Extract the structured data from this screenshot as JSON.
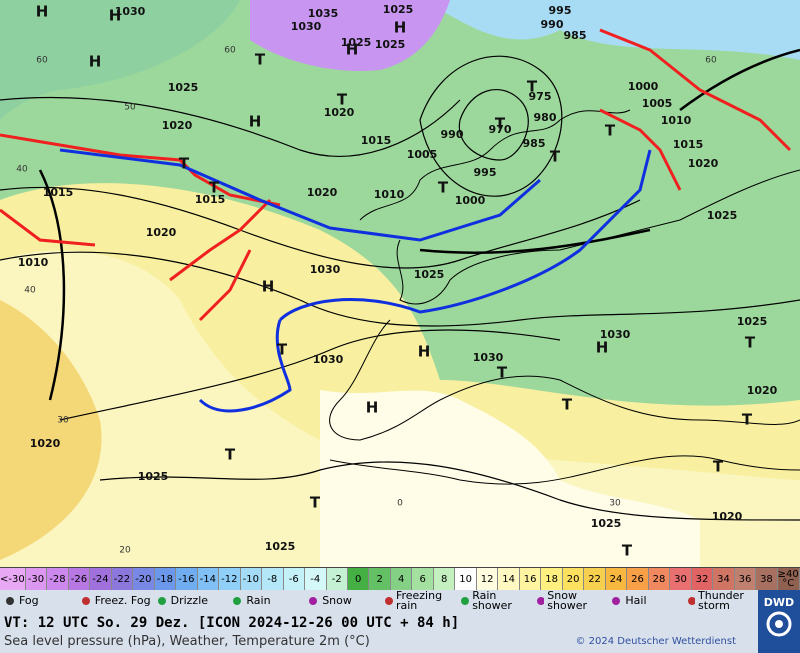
{
  "map": {
    "pressure_labels": [
      "1030",
      "1035",
      "1025",
      "1030",
      "1025",
      "1025",
      "1025",
      "1020",
      "1020",
      "1015",
      "1005",
      "990",
      "970",
      "975",
      "980",
      "985",
      "995",
      "1000",
      "1010",
      "1020",
      "1015",
      "1015",
      "1020",
      "1010",
      "1030",
      "1025",
      "1030",
      "1030",
      "1030",
      "1025",
      "1020",
      "1020",
      "1025",
      "1025",
      "1020",
      "1025",
      "995",
      "990",
      "985",
      "1000",
      "1005",
      "1010",
      "1015",
      "1020",
      "1025"
    ],
    "centers": [
      "H",
      "H",
      "H",
      "H",
      "H",
      "H",
      "H",
      "H",
      "H",
      "H",
      "T",
      "T",
      "T",
      "T",
      "T",
      "T",
      "T",
      "T",
      "T",
      "T",
      "T",
      "T",
      "T",
      "T",
      "T",
      "T",
      "T",
      "T"
    ],
    "grid_labels": [
      "60",
      "50",
      "40",
      "40",
      "30",
      "20",
      "60",
      "60",
      "0",
      "30"
    ]
  },
  "temperature_scale": [
    {
      "label": "<-30",
      "color": "#e8a8f4"
    },
    {
      "label": -30,
      "color": "#dc98f0"
    },
    {
      "label": -28,
      "color": "#cc88ec"
    },
    {
      "label": -26,
      "color": "#b878e4"
    },
    {
      "label": -24,
      "color": "#a070dc"
    },
    {
      "label": -22,
      "color": "#8c78dc"
    },
    {
      "label": -20,
      "color": "#7888e4"
    },
    {
      "label": -18,
      "color": "#6c98ec"
    },
    {
      "label": -16,
      "color": "#70acf0"
    },
    {
      "label": -14,
      "color": "#80c0f4"
    },
    {
      "label": -12,
      "color": "#90d0f8"
    },
    {
      "label": -10,
      "color": "#a4dcf8"
    },
    {
      "label": -8,
      "color": "#b4e8f8"
    },
    {
      "label": -6,
      "color": "#c4f0f8"
    },
    {
      "label": -4,
      "color": "#d4f8f8"
    },
    {
      "label": -2,
      "color": "#c4f0d4"
    },
    {
      "label": 0,
      "color": "#44b044"
    },
    {
      "label": 2,
      "color": "#64c064"
    },
    {
      "label": 4,
      "color": "#84d084"
    },
    {
      "label": 6,
      "color": "#a4e0a0"
    },
    {
      "label": 8,
      "color": "#c4f0c0"
    },
    {
      "label": 10,
      "color": "#ffffff"
    },
    {
      "label": 12,
      "color": "#fffce0"
    },
    {
      "label": 14,
      "color": "#fff8c0"
    },
    {
      "label": 16,
      "color": "#fff4a0"
    },
    {
      "label": 18,
      "color": "#fff080"
    },
    {
      "label": 20,
      "color": "#fce060"
    },
    {
      "label": 22,
      "color": "#f8d050"
    },
    {
      "label": 24,
      "color": "#f8b840"
    },
    {
      "label": 26,
      "color": "#f8a048"
    },
    {
      "label": 28,
      "color": "#f08860"
    },
    {
      "label": 30,
      "color": "#e87070"
    },
    {
      "label": 32,
      "color": "#e06464"
    },
    {
      "label": 34,
      "color": "#d07464"
    },
    {
      "label": 36,
      "color": "#c08070"
    },
    {
      "label": 38,
      "color": "#a87060"
    },
    {
      "label": "≥40 °C",
      "color": "#906050"
    }
  ],
  "weather_legend": [
    "Fog",
    "Freez. Fog",
    "Drizzle",
    "Rain",
    "Snow",
    "Freezing rain",
    "Rain shower",
    "Snow shower",
    "Hail",
    "Thunder storm"
  ],
  "footer": {
    "valid_time": "VT: 12 UTC So.  29 Dez. [ICON 2024-12-26  00 UTC + 84 h]",
    "description": "Sea level pressure (hPa), Weather, Temperature 2m (°C)",
    "copyright": "© 2024 Deutscher Wetterdienst",
    "logo": "DWD"
  }
}
